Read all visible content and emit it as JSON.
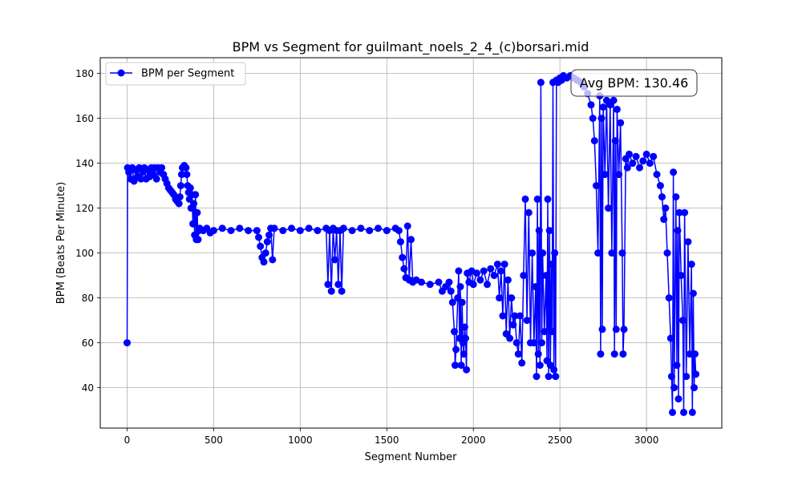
{
  "chart_data": {
    "type": "line",
    "title": "BPM vs Segment for guilmant_noels_2_4_(c)borsari.mid",
    "xlabel": "Segment Number",
    "ylabel": "BPM (Beats Per Minute)",
    "xlim": [
      -155,
      3435
    ],
    "ylim": [
      22,
      187
    ],
    "xticks": [
      0,
      500,
      1000,
      1500,
      2000,
      2500,
      3000
    ],
    "yticks": [
      40,
      60,
      80,
      100,
      120,
      140,
      160,
      180
    ],
    "grid": true,
    "legend_position": "top-left",
    "annotation": "Avg BPM: 130.46",
    "colors": {
      "series": "#0000ff",
      "grid": "#b0b0b0"
    },
    "series": [
      {
        "name": "BPM per Segment",
        "marker": "circle",
        "points": [
          [
            0,
            60
          ],
          [
            3,
            138
          ],
          [
            10,
            136
          ],
          [
            20,
            133
          ],
          [
            30,
            138
          ],
          [
            40,
            132
          ],
          [
            50,
            137
          ],
          [
            60,
            134
          ],
          [
            70,
            138
          ],
          [
            80,
            133
          ],
          [
            90,
            136
          ],
          [
            100,
            138
          ],
          [
            110,
            133
          ],
          [
            120,
            137
          ],
          [
            130,
            134
          ],
          [
            140,
            138
          ],
          [
            150,
            135
          ],
          [
            160,
            138
          ],
          [
            170,
            133
          ],
          [
            180,
            138
          ],
          [
            190,
            136
          ],
          [
            200,
            138
          ],
          [
            210,
            135
          ],
          [
            220,
            133
          ],
          [
            230,
            131
          ],
          [
            240,
            129
          ],
          [
            250,
            128
          ],
          [
            260,
            127
          ],
          [
            270,
            126
          ],
          [
            280,
            124
          ],
          [
            290,
            123
          ],
          [
            300,
            122
          ],
          [
            305,
            125
          ],
          [
            310,
            130
          ],
          [
            315,
            135
          ],
          [
            320,
            138
          ],
          [
            330,
            139
          ],
          [
            340,
            138
          ],
          [
            345,
            135
          ],
          [
            350,
            130
          ],
          [
            355,
            127
          ],
          [
            360,
            124
          ],
          [
            365,
            129
          ],
          [
            370,
            120
          ],
          [
            375,
            126
          ],
          [
            380,
            113
          ],
          [
            385,
            122
          ],
          [
            390,
            108
          ],
          [
            395,
            126
          ],
          [
            400,
            106
          ],
          [
            405,
            118
          ],
          [
            410,
            106
          ],
          [
            415,
            110
          ],
          [
            420,
            111
          ],
          [
            440,
            110
          ],
          [
            460,
            111
          ],
          [
            480,
            109
          ],
          [
            500,
            110
          ],
          [
            550,
            111
          ],
          [
            600,
            110
          ],
          [
            650,
            111
          ],
          [
            700,
            110
          ],
          [
            750,
            110
          ],
          [
            760,
            107
          ],
          [
            770,
            103
          ],
          [
            780,
            98
          ],
          [
            790,
            96
          ],
          [
            800,
            100
          ],
          [
            810,
            105
          ],
          [
            820,
            108
          ],
          [
            830,
            111
          ],
          [
            840,
            97
          ],
          [
            850,
            111
          ],
          [
            900,
            110
          ],
          [
            950,
            111
          ],
          [
            1000,
            110
          ],
          [
            1050,
            111
          ],
          [
            1100,
            110
          ],
          [
            1150,
            111
          ],
          [
            1160,
            86
          ],
          [
            1170,
            110
          ],
          [
            1180,
            83
          ],
          [
            1190,
            111
          ],
          [
            1200,
            97
          ],
          [
            1210,
            110
          ],
          [
            1220,
            86
          ],
          [
            1230,
            110
          ],
          [
            1240,
            83
          ],
          [
            1250,
            111
          ],
          [
            1300,
            110
          ],
          [
            1350,
            111
          ],
          [
            1400,
            110
          ],
          [
            1450,
            111
          ],
          [
            1500,
            110
          ],
          [
            1550,
            111
          ],
          [
            1570,
            110
          ],
          [
            1580,
            105
          ],
          [
            1590,
            98
          ],
          [
            1600,
            93
          ],
          [
            1610,
            89
          ],
          [
            1620,
            112
          ],
          [
            1630,
            88
          ],
          [
            1640,
            106
          ],
          [
            1650,
            87
          ],
          [
            1670,
            88
          ],
          [
            1700,
            87
          ],
          [
            1750,
            86
          ],
          [
            1800,
            87
          ],
          [
            1820,
            83
          ],
          [
            1840,
            85
          ],
          [
            1860,
            87
          ],
          [
            1870,
            83
          ],
          [
            1880,
            78
          ],
          [
            1890,
            65
          ],
          [
            1895,
            50
          ],
          [
            1900,
            57
          ],
          [
            1910,
            80
          ],
          [
            1915,
            92
          ],
          [
            1920,
            62
          ],
          [
            1925,
            85
          ],
          [
            1930,
            50
          ],
          [
            1935,
            78
          ],
          [
            1940,
            60
          ],
          [
            1945,
            55
          ],
          [
            1950,
            67
          ],
          [
            1955,
            62
          ],
          [
            1960,
            48
          ],
          [
            1965,
            91
          ],
          [
            1975,
            87
          ],
          [
            1990,
            92
          ],
          [
            2000,
            86
          ],
          [
            2020,
            91
          ],
          [
            2040,
            88
          ],
          [
            2060,
            92
          ],
          [
            2080,
            86
          ],
          [
            2100,
            93
          ],
          [
            2120,
            90
          ],
          [
            2140,
            95
          ],
          [
            2150,
            80
          ],
          [
            2160,
            92
          ],
          [
            2170,
            72
          ],
          [
            2180,
            95
          ],
          [
            2190,
            64
          ],
          [
            2200,
            88
          ],
          [
            2210,
            62
          ],
          [
            2220,
            80
          ],
          [
            2230,
            68
          ],
          [
            2240,
            72
          ],
          [
            2250,
            60
          ],
          [
            2260,
            55
          ],
          [
            2270,
            72
          ],
          [
            2280,
            51
          ],
          [
            2290,
            90
          ],
          [
            2300,
            124
          ],
          [
            2310,
            70
          ],
          [
            2320,
            118
          ],
          [
            2330,
            60
          ],
          [
            2340,
            100
          ],
          [
            2350,
            60
          ],
          [
            2360,
            85
          ],
          [
            2365,
            45
          ],
          [
            2370,
            124
          ],
          [
            2375,
            55
          ],
          [
            2380,
            110
          ],
          [
            2385,
            50
          ],
          [
            2390,
            176
          ],
          [
            2395,
            60
          ],
          [
            2400,
            100
          ],
          [
            2410,
            65
          ],
          [
            2420,
            90
          ],
          [
            2425,
            52
          ],
          [
            2430,
            124
          ],
          [
            2435,
            45
          ],
          [
            2440,
            110
          ],
          [
            2445,
            50
          ],
          [
            2450,
            95
          ],
          [
            2455,
            65
          ],
          [
            2460,
            176
          ],
          [
            2465,
            48
          ],
          [
            2470,
            100
          ],
          [
            2475,
            45
          ],
          [
            2480,
            177
          ],
          [
            2490,
            176
          ],
          [
            2500,
            178
          ],
          [
            2510,
            177
          ],
          [
            2520,
            179
          ],
          [
            2540,
            178
          ],
          [
            2560,
            179
          ],
          [
            2580,
            178
          ],
          [
            2600,
            177
          ],
          [
            2620,
            176
          ],
          [
            2640,
            174
          ],
          [
            2660,
            171
          ],
          [
            2680,
            166
          ],
          [
            2690,
            160
          ],
          [
            2700,
            150
          ],
          [
            2710,
            130
          ],
          [
            2720,
            100
          ],
          [
            2730,
            170
          ],
          [
            2735,
            55
          ],
          [
            2740,
            160
          ],
          [
            2745,
            66
          ],
          [
            2750,
            165
          ],
          [
            2760,
            135
          ],
          [
            2770,
            168
          ],
          [
            2780,
            120
          ],
          [
            2790,
            166
          ],
          [
            2800,
            100
          ],
          [
            2810,
            168
          ],
          [
            2815,
            55
          ],
          [
            2820,
            150
          ],
          [
            2825,
            66
          ],
          [
            2830,
            164
          ],
          [
            2840,
            135
          ],
          [
            2850,
            158
          ],
          [
            2860,
            100
          ],
          [
            2865,
            55
          ],
          [
            2870,
            66
          ],
          [
            2880,
            142
          ],
          [
            2890,
            138
          ],
          [
            2900,
            144
          ],
          [
            2920,
            140
          ],
          [
            2940,
            143
          ],
          [
            2960,
            138
          ],
          [
            2980,
            141
          ],
          [
            3000,
            144
          ],
          [
            3020,
            140
          ],
          [
            3040,
            143
          ],
          [
            3060,
            135
          ],
          [
            3080,
            130
          ],
          [
            3090,
            125
          ],
          [
            3100,
            115
          ],
          [
            3110,
            120
          ],
          [
            3120,
            100
          ],
          [
            3130,
            80
          ],
          [
            3140,
            62
          ],
          [
            3145,
            45
          ],
          [
            3150,
            29
          ],
          [
            3155,
            136
          ],
          [
            3160,
            40
          ],
          [
            3170,
            125
          ],
          [
            3175,
            50
          ],
          [
            3180,
            110
          ],
          [
            3185,
            35
          ],
          [
            3190,
            118
          ],
          [
            3200,
            90
          ],
          [
            3210,
            70
          ],
          [
            3215,
            29
          ],
          [
            3220,
            118
          ],
          [
            3230,
            45
          ],
          [
            3240,
            105
          ],
          [
            3250,
            55
          ],
          [
            3260,
            95
          ],
          [
            3265,
            29
          ],
          [
            3270,
            82
          ],
          [
            3275,
            40
          ],
          [
            3280,
            55
          ],
          [
            3285,
            46
          ]
        ]
      }
    ]
  }
}
